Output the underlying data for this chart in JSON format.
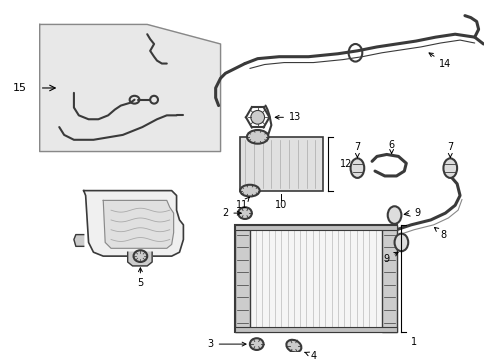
{
  "figsize": [
    4.89,
    3.6
  ],
  "dpi": 100,
  "bg": "#ffffff",
  "lc": "#3a3a3a",
  "lc2": "#666666",
  "lc_light": "#aaaaaa",
  "inset_bg": "#e8e8e8",
  "inset_border": "#777777"
}
